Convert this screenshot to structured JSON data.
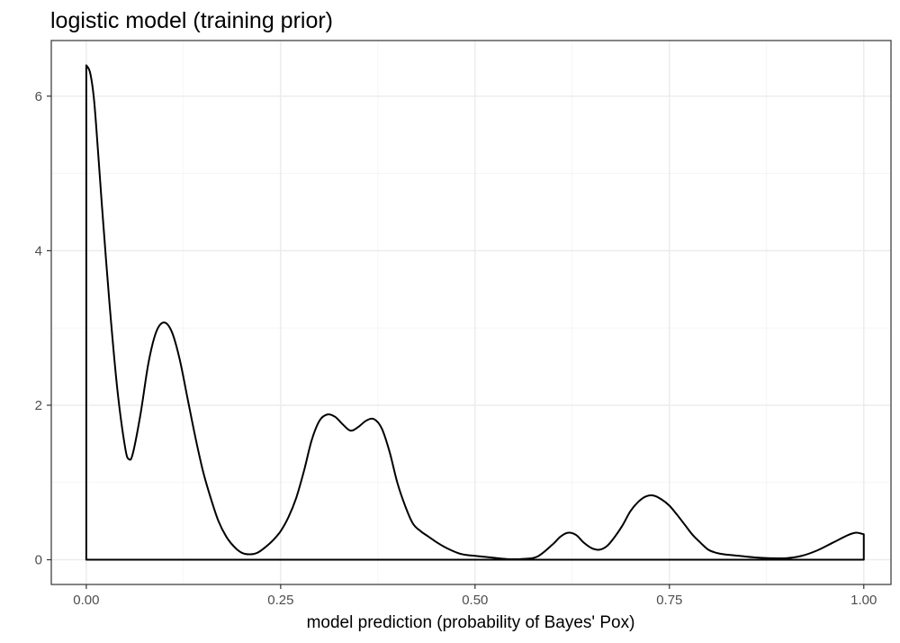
{
  "chart_data": {
    "type": "area",
    "title": "logistic model (training prior)",
    "xlabel": "model prediction (probability of Bayes' Pox)",
    "ylabel": "",
    "xlim": [
      -0.045,
      1.035
    ],
    "ylim": [
      -0.32,
      6.72
    ],
    "x_ticks": [
      0.0,
      0.25,
      0.5,
      0.75,
      1.0
    ],
    "x_tick_labels": [
      "0.00",
      "0.25",
      "0.50",
      "0.75",
      "1.00"
    ],
    "y_ticks": [
      0,
      2,
      4,
      6
    ],
    "y_tick_labels": [
      "0",
      "2",
      "4",
      "6"
    ],
    "grid": true,
    "legend": "none",
    "series": [
      {
        "x": [
          0.0,
          0.005,
          0.01,
          0.015,
          0.02,
          0.03,
          0.04,
          0.05,
          0.055,
          0.06,
          0.07,
          0.08,
          0.09,
          0.1,
          0.11,
          0.12,
          0.13,
          0.14,
          0.15,
          0.16,
          0.17,
          0.18,
          0.19,
          0.2,
          0.21,
          0.22,
          0.23,
          0.24,
          0.25,
          0.26,
          0.27,
          0.28,
          0.29,
          0.3,
          0.31,
          0.32,
          0.33,
          0.34,
          0.35,
          0.36,
          0.37,
          0.38,
          0.39,
          0.4,
          0.41,
          0.42,
          0.43,
          0.44,
          0.45,
          0.46,
          0.47,
          0.48,
          0.49,
          0.5,
          0.52,
          0.54,
          0.56,
          0.58,
          0.6,
          0.61,
          0.62,
          0.63,
          0.64,
          0.65,
          0.66,
          0.67,
          0.68,
          0.69,
          0.7,
          0.71,
          0.72,
          0.73,
          0.74,
          0.75,
          0.76,
          0.77,
          0.78,
          0.79,
          0.8,
          0.81,
          0.82,
          0.84,
          0.86,
          0.88,
          0.9,
          0.92,
          0.94,
          0.96,
          0.98,
          0.99,
          1.0
        ],
        "y": [
          6.4,
          6.3,
          5.95,
          5.3,
          4.6,
          3.3,
          2.2,
          1.45,
          1.3,
          1.38,
          1.9,
          2.55,
          2.95,
          3.07,
          2.95,
          2.6,
          2.1,
          1.6,
          1.15,
          0.8,
          0.5,
          0.3,
          0.17,
          0.09,
          0.07,
          0.09,
          0.16,
          0.25,
          0.37,
          0.55,
          0.8,
          1.15,
          1.55,
          1.8,
          1.88,
          1.85,
          1.75,
          1.67,
          1.72,
          1.8,
          1.82,
          1.7,
          1.4,
          1.0,
          0.7,
          0.47,
          0.37,
          0.3,
          0.23,
          0.17,
          0.12,
          0.08,
          0.06,
          0.05,
          0.03,
          0.01,
          0.01,
          0.04,
          0.2,
          0.3,
          0.35,
          0.32,
          0.22,
          0.15,
          0.13,
          0.18,
          0.3,
          0.45,
          0.63,
          0.75,
          0.82,
          0.83,
          0.78,
          0.7,
          0.58,
          0.45,
          0.32,
          0.22,
          0.13,
          0.09,
          0.07,
          0.05,
          0.03,
          0.02,
          0.02,
          0.05,
          0.12,
          0.22,
          0.32,
          0.35,
          0.33
        ]
      }
    ]
  }
}
